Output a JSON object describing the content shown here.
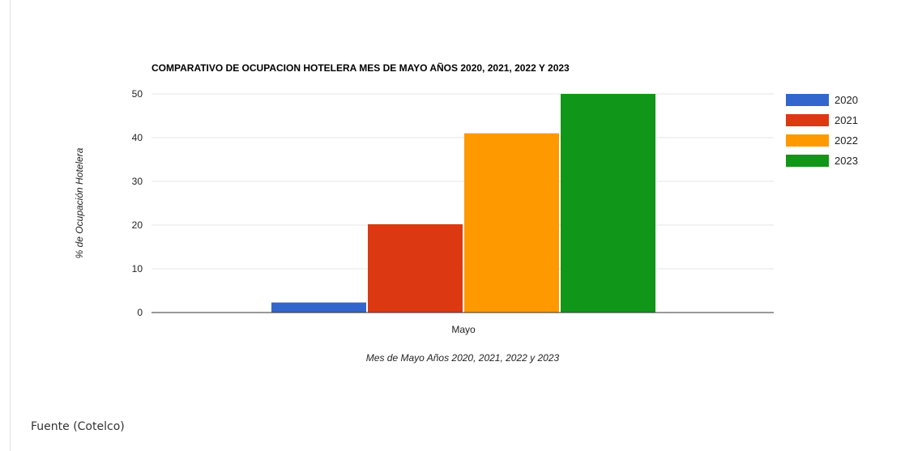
{
  "chart_data": {
    "type": "bar",
    "title": "COMPARATIVO DE OCUPACION HOTELERA MES DE MAYO AÑOS 2020, 2021, 2022 Y 2023",
    "xlabel": "Mes de Mayo Años 2020, 2021, 2022 y 2023",
    "ylabel": "% de Ocupación Hotelera",
    "categories": [
      "Mayo"
    ],
    "ylim": [
      0,
      50
    ],
    "yticks": [
      0,
      10,
      20,
      30,
      40,
      50
    ],
    "grid": true,
    "legend": "right",
    "series": [
      {
        "name": "2020",
        "values": [
          2.3
        ],
        "color": "#3366cc"
      },
      {
        "name": "2021",
        "values": [
          20.2
        ],
        "color": "#dc3912"
      },
      {
        "name": "2022",
        "values": [
          41
        ],
        "color": "#ff9900"
      },
      {
        "name": "2023",
        "values": [
          50
        ],
        "color": "#109618"
      }
    ]
  },
  "source": "Fuente (Cotelco)"
}
